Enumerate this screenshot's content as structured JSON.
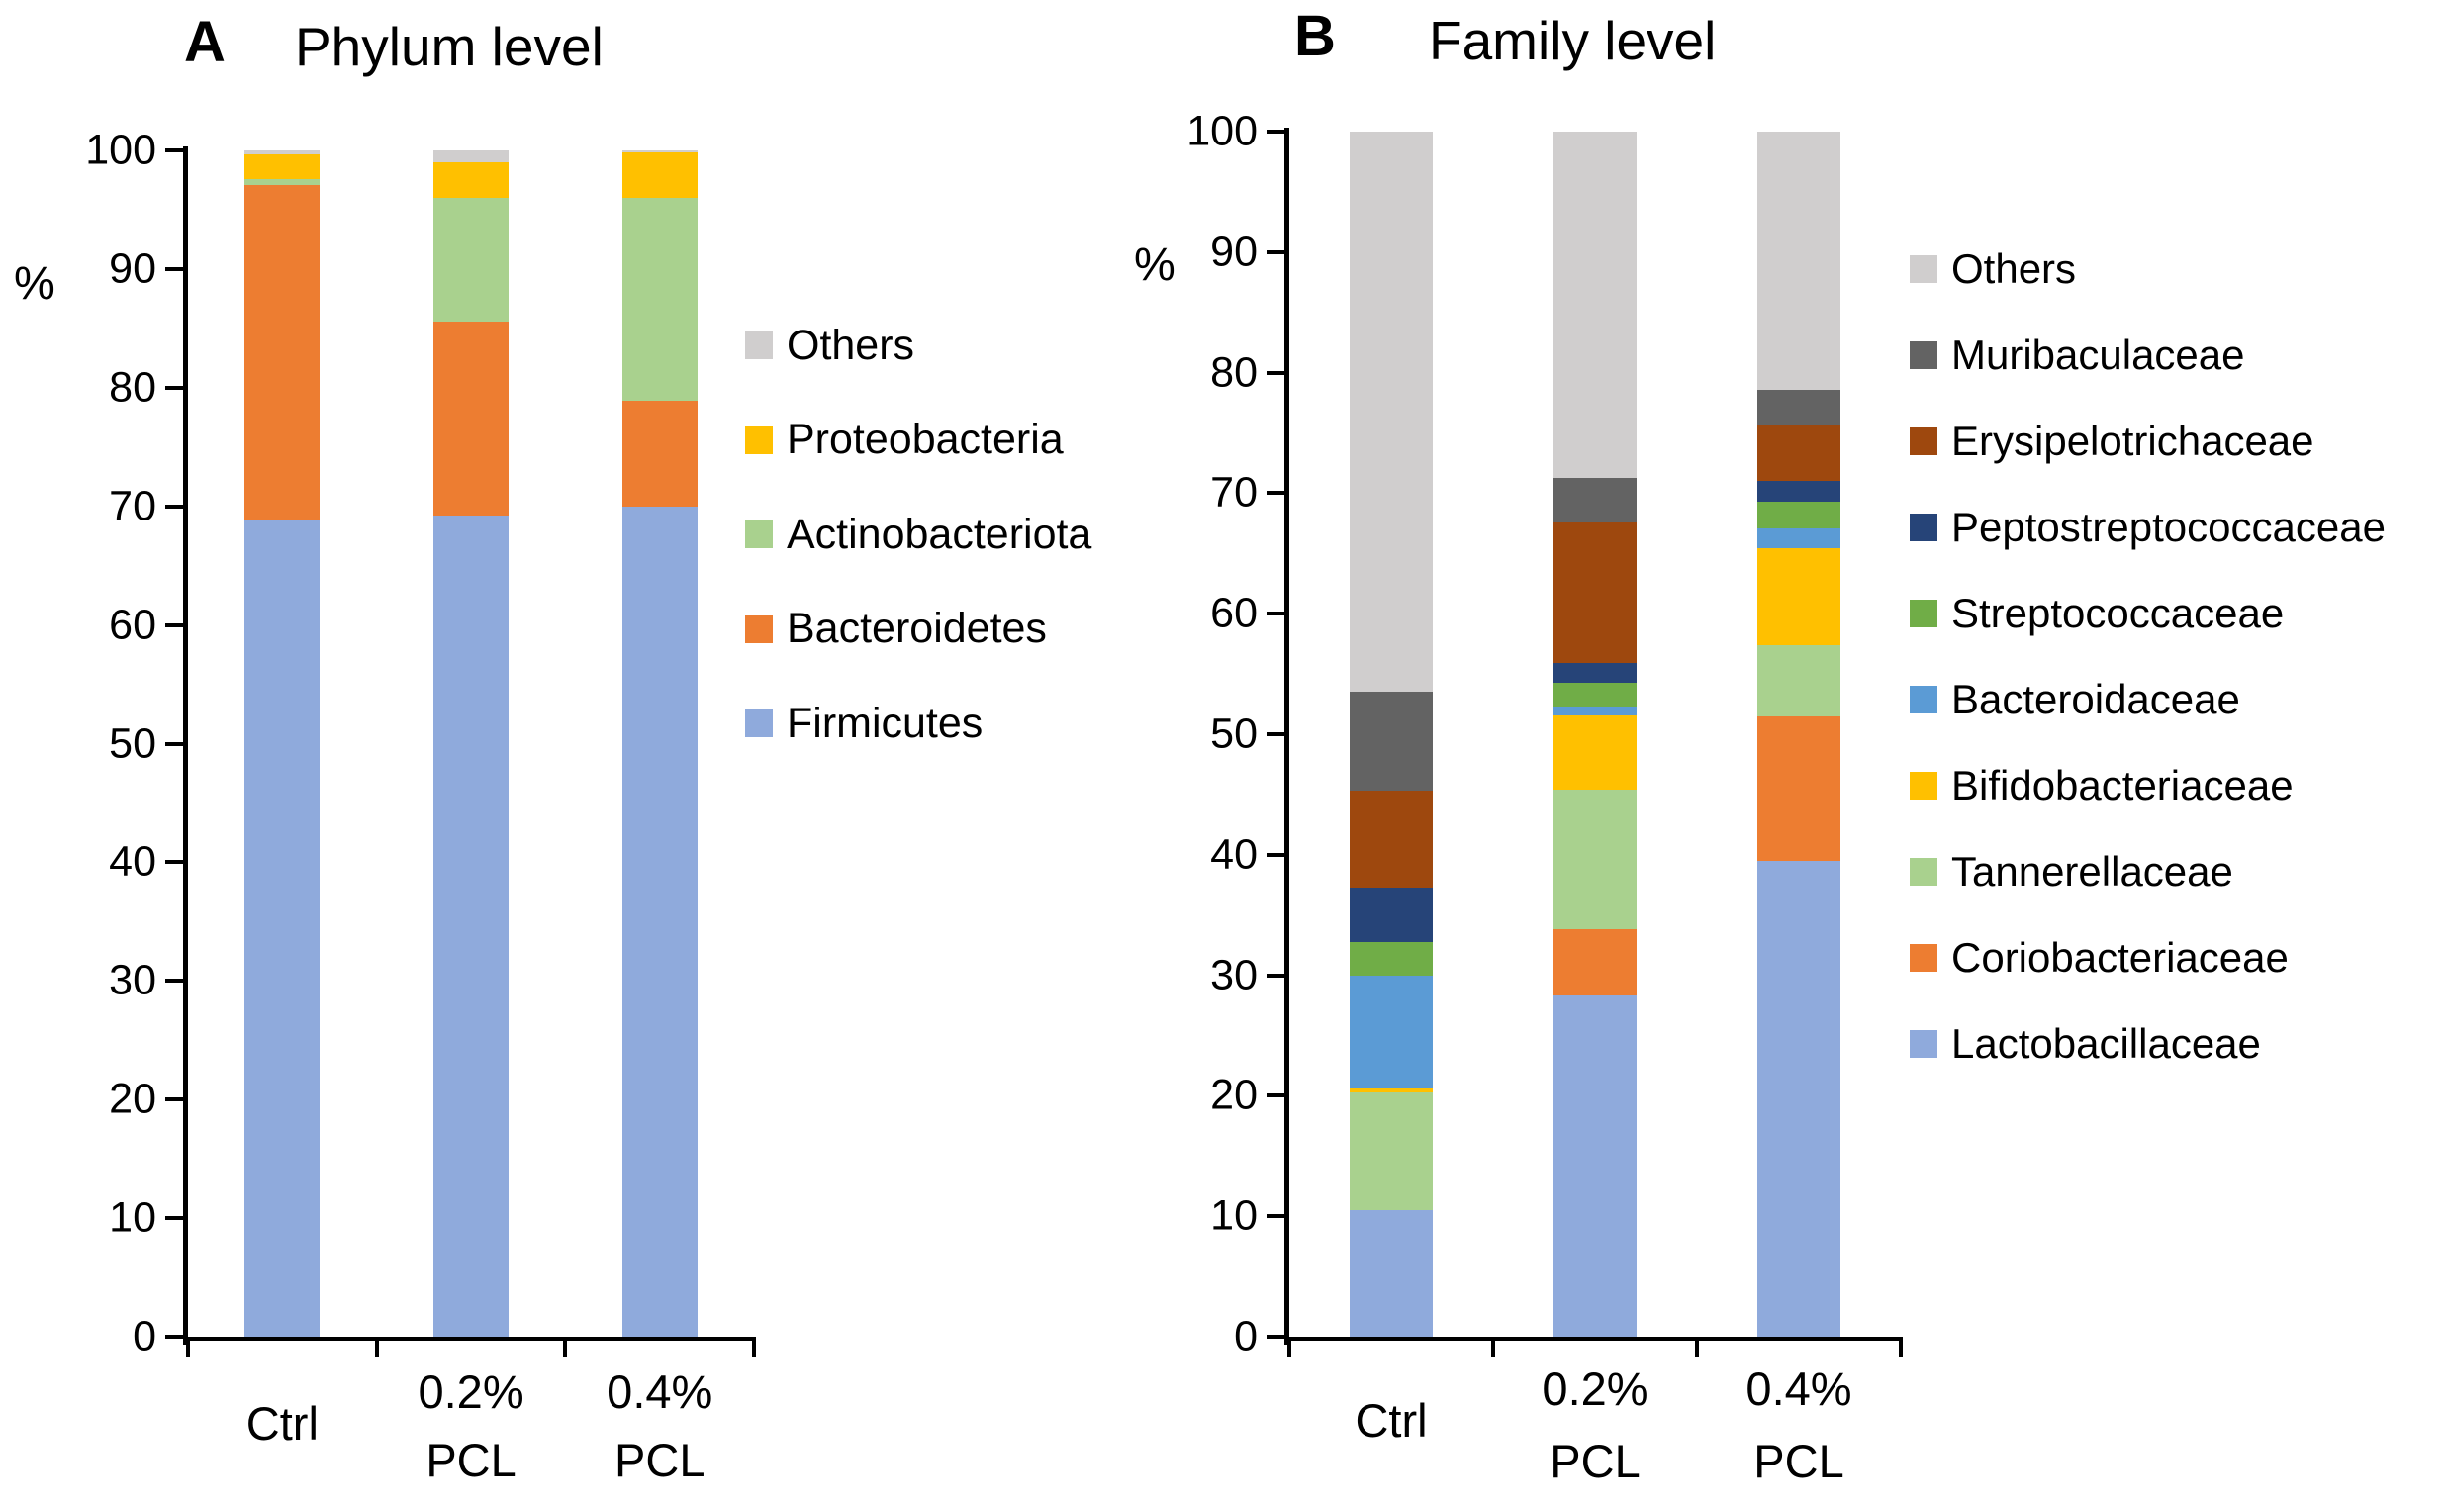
{
  "figure": {
    "panel_a": {
      "panel_label": "A",
      "title": "Phylum level",
      "y_unit": "%"
    },
    "panel_b": {
      "panel_label": "B",
      "title": "Family level",
      "y_unit": "%"
    }
  },
  "chart_data": [
    {
      "type": "bar",
      "stacked": true,
      "panel_label": "A",
      "title": "Phylum level",
      "ylabel": "%",
      "ylim": [
        0,
        100
      ],
      "ytick_step": 10,
      "grid": false,
      "legend_position": "right",
      "categories": [
        "Ctrl",
        "0.2% PCL",
        "0.4% PCL"
      ],
      "category_lines": [
        [
          "Ctrl"
        ],
        [
          "0.2%",
          "PCL"
        ],
        [
          "0.4%",
          "PCL"
        ]
      ],
      "legend_top_to_bottom": [
        "Others",
        "Proteobacteria",
        "Actinobacteriota",
        "Bacteroidetes",
        "Firmicutes"
      ],
      "series": [
        {
          "name": "Firmicutes",
          "color": "#8FAADC",
          "values": [
            68.8,
            69.2,
            70.0
          ]
        },
        {
          "name": "Bacteroidetes",
          "color": "#ED7D31",
          "values": [
            28.3,
            16.4,
            8.9
          ]
        },
        {
          "name": "Actinobacteriota",
          "color": "#A9D18E",
          "values": [
            0.5,
            10.4,
            17.1
          ]
        },
        {
          "name": "Proteobacteria",
          "color": "#FFC000",
          "values": [
            2.1,
            3.0,
            3.8
          ]
        },
        {
          "name": "Others",
          "color": "#D0CECE",
          "values": [
            0.3,
            1.0,
            0.2
          ]
        }
      ]
    },
    {
      "type": "bar",
      "stacked": true,
      "panel_label": "B",
      "title": "Family level",
      "ylabel": "%",
      "ylim": [
        0,
        100
      ],
      "ytick_step": 10,
      "grid": false,
      "legend_position": "right",
      "categories": [
        "Ctrl",
        "0.2% PCL",
        "0.4% PCL"
      ],
      "category_lines": [
        [
          "Ctrl"
        ],
        [
          "0.2%",
          "PCL"
        ],
        [
          "0.4%",
          "PCL"
        ]
      ],
      "legend_top_to_bottom": [
        "Others",
        "Muribaculaceae",
        "Erysipelotrichaceae",
        "Peptostreptococcaceae",
        "Streptococcaceae",
        "Bacteroidaceae",
        "Bifidobacteriaceae",
        "Tannerellaceae",
        "Coriobacteriaceae",
        "Lactobacillaceae"
      ],
      "series": [
        {
          "name": "Lactobacillaceae",
          "color": "#8FAADC",
          "values": [
            10.5,
            28.3,
            39.5
          ]
        },
        {
          "name": "Coriobacteriaceae",
          "color": "#ED7D31",
          "values": [
            0.0,
            5.5,
            12.0
          ]
        },
        {
          "name": "Tannerellaceae",
          "color": "#A9D18E",
          "values": [
            9.8,
            11.6,
            5.9
          ]
        },
        {
          "name": "Bifidobacteriaceae",
          "color": "#FFC000",
          "values": [
            0.3,
            6.2,
            8.0
          ]
        },
        {
          "name": "Bacteroidaceae",
          "color": "#5B9BD5",
          "values": [
            9.4,
            0.7,
            1.7
          ]
        },
        {
          "name": "Streptococcaceae",
          "color": "#70AD47",
          "values": [
            2.8,
            2.0,
            2.2
          ]
        },
        {
          "name": "Peptostreptococcaceae",
          "color": "#264478",
          "values": [
            4.5,
            1.6,
            1.7
          ]
        },
        {
          "name": "Erysipelotrichaceae",
          "color": "#9E480E",
          "values": [
            8.0,
            11.7,
            4.6
          ]
        },
        {
          "name": "Muribaculaceae",
          "color": "#636363",
          "values": [
            8.2,
            3.7,
            3.0
          ]
        },
        {
          "name": "Others",
          "color": "#D0CECE",
          "values": [
            46.5,
            28.7,
            21.4
          ]
        }
      ]
    }
  ]
}
